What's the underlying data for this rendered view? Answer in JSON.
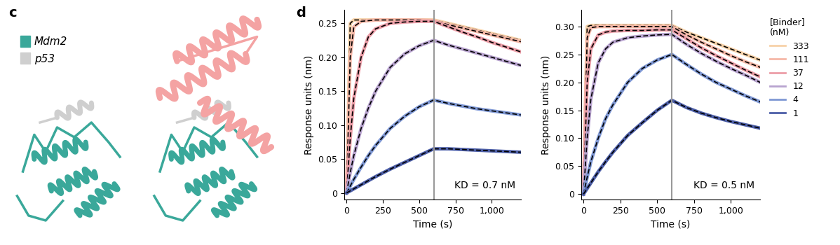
{
  "panel_labels": [
    "c",
    "d"
  ],
  "structure_legend": [
    {
      "name": "Mdm2",
      "color": "#3aa89a"
    },
    {
      "name": "p53",
      "color": "#cfcfcf"
    }
  ],
  "chart_data": [
    {
      "type": "line",
      "xlabel": "Time (s)",
      "ylabel": "Response units (nm)",
      "annotation": "KD = 0.7 nM",
      "dissociation_start": 600,
      "x": [
        0,
        25,
        50,
        100,
        150,
        200,
        300,
        400,
        500,
        600,
        700,
        800,
        900,
        1000,
        1100,
        1200
      ],
      "xlim": [
        -15,
        1200
      ],
      "xticks": [
        0,
        250,
        500,
        750,
        {
          "value": 1000,
          "label": "1,000"
        }
      ],
      "ylim": [
        -0.01,
        0.27
      ],
      "yticks": [
        0,
        0.05,
        {
          "value": 0.1,
          "label": "0.10"
        },
        0.15,
        {
          "value": 0.2,
          "label": "0.20"
        },
        0.25
      ],
      "series": [
        {
          "name": "333",
          "color": "#f7d2a9",
          "values": [
            0,
            0.25,
            0.255,
            0.255,
            0.255,
            0.255,
            0.255,
            0.255,
            0.255,
            0.255,
            0.25,
            0.245,
            0.24,
            0.235,
            0.23,
            0.225
          ]
        },
        {
          "name": "111",
          "color": "#f5b8a8",
          "values": [
            0,
            0.2,
            0.245,
            0.253,
            0.254,
            0.255,
            0.255,
            0.255,
            0.255,
            0.254,
            0.248,
            0.243,
            0.238,
            0.233,
            0.228,
            0.223
          ]
        },
        {
          "name": "37",
          "color": "#ec9ea8",
          "values": [
            0,
            0.08,
            0.14,
            0.2,
            0.23,
            0.242,
            0.25,
            0.252,
            0.253,
            0.253,
            0.245,
            0.237,
            0.23,
            0.222,
            0.215,
            0.208
          ]
        },
        {
          "name": "12",
          "color": "#b8a3cf",
          "values": [
            0,
            0.03,
            0.055,
            0.095,
            0.125,
            0.15,
            0.185,
            0.205,
            0.217,
            0.225,
            0.218,
            0.212,
            0.206,
            0.2,
            0.194,
            0.188
          ]
        },
        {
          "name": "4",
          "color": "#7f98d4",
          "values": [
            0,
            0.01,
            0.02,
            0.038,
            0.055,
            0.07,
            0.095,
            0.113,
            0.127,
            0.137,
            0.132,
            0.128,
            0.124,
            0.121,
            0.118,
            0.115
          ]
        },
        {
          "name": "1",
          "color": "#4d5fa8",
          "values": [
            0,
            0.003,
            0.006,
            0.012,
            0.018,
            0.024,
            0.035,
            0.045,
            0.055,
            0.065,
            0.065,
            0.064,
            0.063,
            0.062,
            0.061,
            0.06
          ]
        }
      ]
    },
    {
      "type": "line",
      "xlabel": "Time (s)",
      "ylabel": "Response units (nm)",
      "annotation": "KD = 0.5 nM",
      "dissociation_start": 600,
      "legend": "right",
      "legend_title": "[Binder]\n(nM)",
      "x": [
        0,
        25,
        50,
        100,
        150,
        200,
        300,
        400,
        500,
        600,
        700,
        800,
        900,
        1000,
        1100,
        1200
      ],
      "xlim": [
        -15,
        1200
      ],
      "xticks": [
        0,
        250,
        500,
        750,
        {
          "value": 1000,
          "label": "1,000"
        }
      ],
      "ylim": [
        -0.01,
        0.33
      ],
      "yticks": [
        0,
        0.05,
        {
          "value": 0.1,
          "label": "0.10"
        },
        0.15,
        {
          "value": 0.2,
          "label": "0.20"
        },
        0.25,
        {
          "value": 0.3,
          "label": "0.30"
        }
      ],
      "series": [
        {
          "name": "333",
          "color": "#f7d2a9",
          "values": [
            0,
            0.3,
            0.302,
            0.302,
            0.302,
            0.302,
            0.302,
            0.302,
            0.302,
            0.302,
            0.29,
            0.28,
            0.27,
            0.26,
            0.25,
            0.24
          ]
        },
        {
          "name": "111",
          "color": "#f5b8a8",
          "values": [
            0,
            0.28,
            0.298,
            0.3,
            0.3,
            0.3,
            0.3,
            0.3,
            0.3,
            0.3,
            0.285,
            0.272,
            0.26,
            0.248,
            0.237,
            0.227
          ]
        },
        {
          "name": "37",
          "color": "#ec9ea8",
          "values": [
            0,
            0.2,
            0.26,
            0.285,
            0.29,
            0.292,
            0.293,
            0.293,
            0.294,
            0.294,
            0.278,
            0.262,
            0.248,
            0.235,
            0.222,
            0.21
          ]
        },
        {
          "name": "12",
          "color": "#b8a3cf",
          "values": [
            0,
            0.1,
            0.17,
            0.235,
            0.26,
            0.272,
            0.28,
            0.283,
            0.285,
            0.286,
            0.268,
            0.252,
            0.238,
            0.225,
            0.213,
            0.2
          ]
        },
        {
          "name": "4",
          "color": "#7f98d4",
          "values": [
            0,
            0.03,
            0.058,
            0.1,
            0.135,
            0.16,
            0.2,
            0.225,
            0.24,
            0.25,
            0.232,
            0.215,
            0.2,
            0.188,
            0.176,
            0.165
          ]
        },
        {
          "name": "1",
          "color": "#4d5fa8",
          "values": [
            0,
            0.01,
            0.02,
            0.04,
            0.058,
            0.075,
            0.105,
            0.128,
            0.15,
            0.168,
            0.155,
            0.145,
            0.137,
            0.13,
            0.124,
            0.118
          ]
        }
      ]
    }
  ]
}
